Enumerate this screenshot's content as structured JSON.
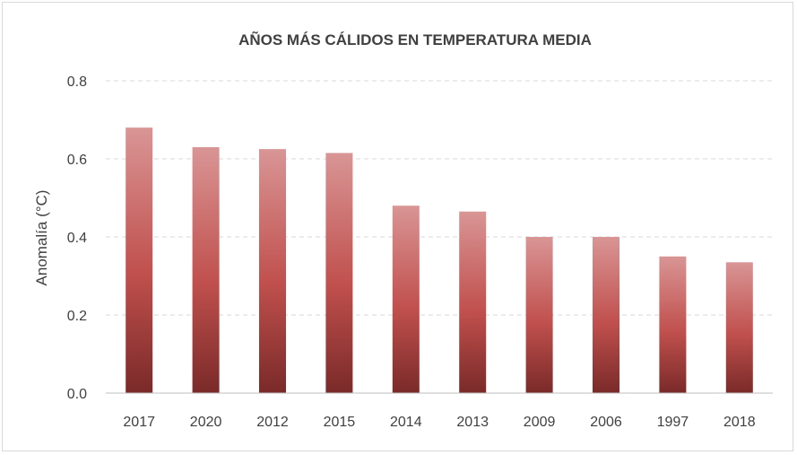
{
  "chart_data": {
    "type": "bar",
    "title": "AÑOS MÁS CÁLIDOS EN TEMPERATURA  MEDIA",
    "xlabel": "",
    "ylabel": "Anomalía (°C)",
    "categories": [
      "2017",
      "2020",
      "2012",
      "2015",
      "2014",
      "2013",
      "2009",
      "2006",
      "1997",
      "2018"
    ],
    "values": [
      0.68,
      0.63,
      0.625,
      0.615,
      0.48,
      0.465,
      0.4,
      0.4,
      0.35,
      0.335
    ],
    "ylim": [
      0,
      0.8
    ],
    "yticks": [
      "0.0",
      "0.2",
      "0.4",
      "0.6",
      "0.8"
    ],
    "grid": true,
    "legend": "none",
    "colors": {
      "bar_top": "#d99595",
      "bar_mid": "#c0504d",
      "bar_bottom": "#7a2a29",
      "grid": "#d9d9d9",
      "axis": "#bfbfbf"
    }
  }
}
